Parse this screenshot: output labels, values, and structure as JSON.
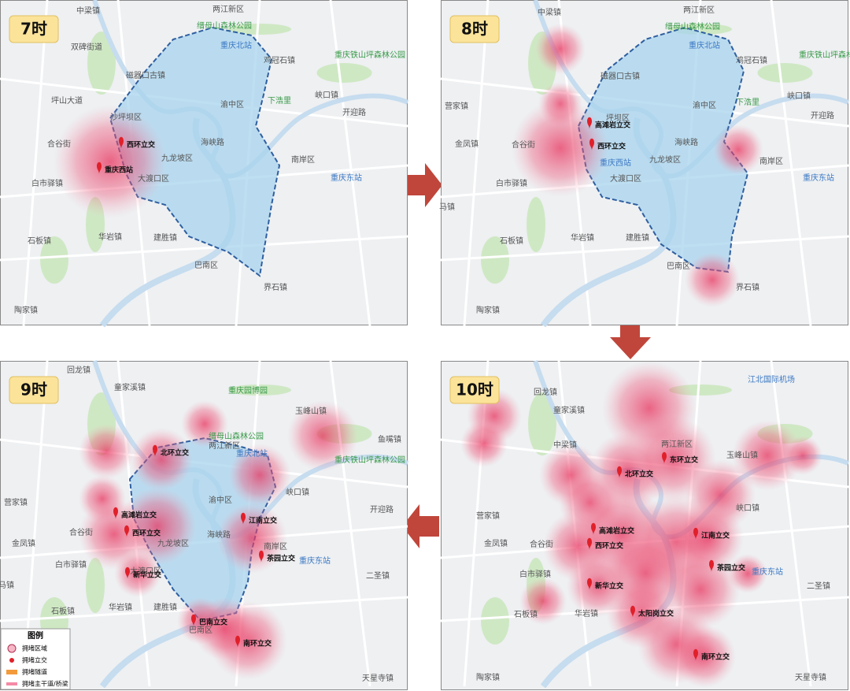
{
  "panels": [
    {
      "time": "7时",
      "places": [
        "中梁镇",
        "两江新区",
        "缙母山森林公园",
        "重庆北站",
        "重庆铁山坪森林公园",
        "双碑街道",
        "磁器口古镇",
        "鸡冠石镇",
        "峡口镇",
        "坪山大道",
        "沙坪坝区",
        "渝中区",
        "下浩里",
        "开迎路",
        "合谷街",
        "九龙坡区",
        "大渡口区",
        "南岸区",
        "重庆东站",
        "白市驿镇",
        "华岩镇",
        "建胜镇",
        "石板镇",
        "巴南区",
        "界石镇",
        "陶家镇",
        "海峡路"
      ],
      "hotspots": [
        "西环立交",
        "重庆西站"
      ]
    },
    {
      "time": "8时",
      "places": [
        "中梁镇",
        "两江新区",
        "缙母山森林公园",
        "重庆北站",
        "重庆铁山坪森林公园",
        "磁器口古镇",
        "鸡冠石镇",
        "峡口镇",
        "营家镇",
        "坪坝区",
        "渝中区",
        "下浩里",
        "开迎路",
        "金凤镇",
        "合谷街",
        "九龙坡区",
        "大渡口区",
        "南岸区",
        "重庆东站",
        "白市驿镇",
        "马镇",
        "华岩镇",
        "建胜镇",
        "石板镇",
        "巴南区",
        "界石镇",
        "陶家镇",
        "海峡路",
        "重庆西站"
      ],
      "hotspots": [
        "高滩岩立交",
        "西环立交"
      ]
    },
    {
      "time": "9时",
      "places": [
        "回龙镇",
        "童家溪镇",
        "重庆园博园",
        "玉峰山镇",
        "两江新区",
        "缙母山森林公园",
        "重庆北站",
        "鱼嘴镇",
        "重庆铁山坪森林公园",
        "营家镇",
        "渝中区",
        "峡口镇",
        "开迎路",
        "金凤镇",
        "合谷街",
        "九龙坡区",
        "大渡口区",
        "南岸区",
        "重庆东站",
        "白市驿镇",
        "马镇",
        "华岩镇",
        "建胜镇",
        "石板镇",
        "二圣镇",
        "巴南区",
        "陶家镇",
        "天星寺镇",
        "海峡路"
      ],
      "hotspots": [
        "北环立交",
        "高滩岩立交",
        "西环立交",
        "新华立交",
        "江南立交",
        "茶园立交",
        "巴南立交",
        "南环立交"
      ]
    },
    {
      "time": "10时",
      "places": [
        "回龙镇",
        "童家溪镇",
        "江北国际机场",
        "中梁镇",
        "两江新区",
        "玉峰山镇",
        "营家镇",
        "金凤镇",
        "合谷街",
        "峡口镇",
        "白市驿镇",
        "石板镇",
        "华岩镇",
        "二圣镇",
        "陶家镇",
        "天星寺镇",
        "重庆东站"
      ],
      "hotspots": [
        "北环立交",
        "东环立交",
        "高滩岩立交",
        "西环立交",
        "新华立交",
        "江南立交",
        "茶园立交",
        "太阳岗立交",
        "南环立交"
      ]
    }
  ],
  "legend": {
    "title": "图例",
    "items": [
      "拥堵区域",
      "拥堵立交",
      "拥堵隧道",
      "拥堵主干道/桥梁"
    ]
  }
}
